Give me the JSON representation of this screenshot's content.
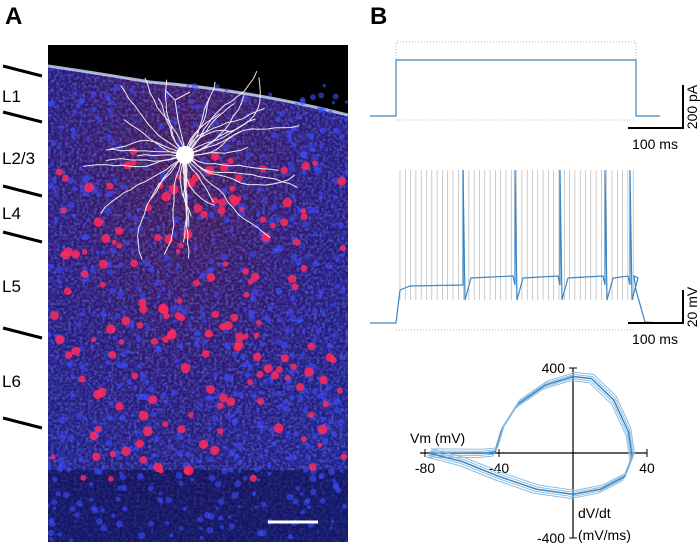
{
  "panels": {
    "a": "A",
    "b": "B"
  },
  "layers": [
    "L1",
    "L2/3",
    "L4",
    "L5",
    "L6"
  ],
  "current_scale": {
    "amplitude": "200 pA",
    "time": "100 ms"
  },
  "voltage_scale": {
    "amplitude": "20 mV",
    "time": "100 ms"
  },
  "phase_plot": {
    "x_label": "Vm (mV)",
    "y_label": [
      "dV/dt",
      "(mV/ms)"
    ],
    "xlim": [
      -80,
      40
    ],
    "xticks": [
      -80,
      -40,
      40
    ],
    "ylim": [
      -400,
      400
    ],
    "yticks": [
      400,
      -400
    ]
  }
}
